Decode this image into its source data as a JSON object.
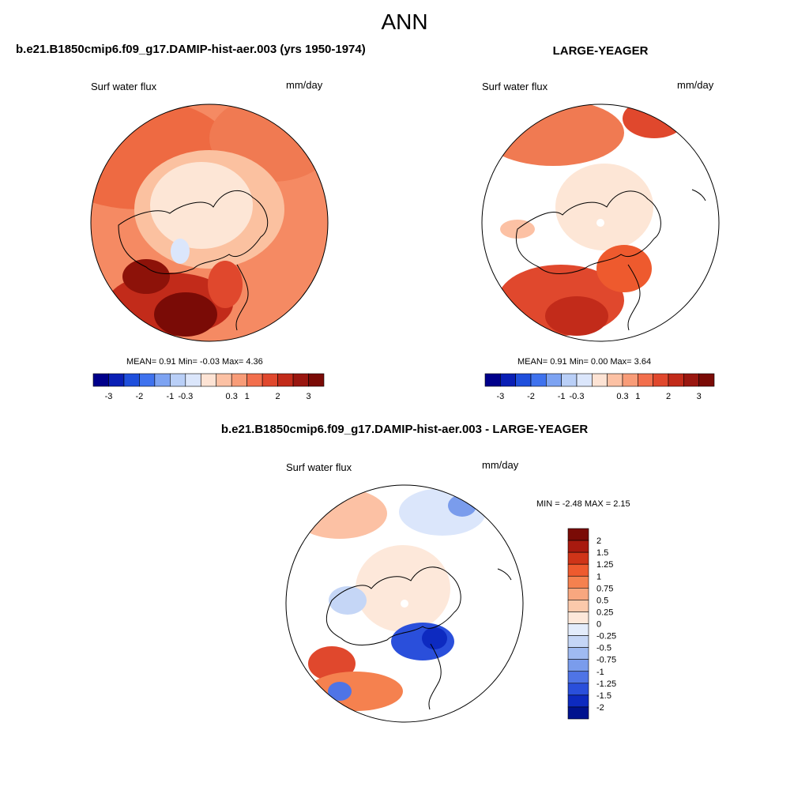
{
  "main_title": "ANN",
  "panels": {
    "left": {
      "title": "b.e21.B1850cmip6.f09_g17.DAMIP-hist-aer.003 (yrs 1950-1974)",
      "variable": "Surf water flux",
      "units": "mm/day",
      "stats": "MEAN=   0.91  Min=   -0.03  Max=   4.36"
    },
    "right": {
      "title": "LARGE-YEAGER",
      "variable": "Surf water flux",
      "units": "mm/day",
      "stats": "MEAN=   0.91  Min=   0.00  Max=   3.64"
    },
    "diff": {
      "title": "b.e21.B1850cmip6.f09_g17.DAMIP-hist-aer.003 - LARGE-YEAGER",
      "variable": "Surf water flux",
      "units": "mm/day",
      "stats": "MIN =  -2.48 MAX =   2.15"
    }
  },
  "chart_data": [
    {
      "type": "heatmap",
      "projection": "north-polar-stereographic",
      "title": "b.e21.B1850cmip6.f09_g17.DAMIP-hist-aer.003 (yrs 1950-1974)",
      "variable": "Surf water flux",
      "units": "mm/day",
      "mean": 0.91,
      "min": -0.03,
      "max": 4.36,
      "colorbar": {
        "orientation": "horizontal",
        "levels": [
          -3,
          -2,
          -1,
          -0.3,
          0.3,
          1,
          2,
          3
        ],
        "tick_labels": [
          "-3",
          "-2",
          "-1",
          "-0.3",
          "0.3",
          "1",
          "2",
          "3"
        ],
        "colors": [
          "#00008b",
          "#0a1fb5",
          "#1f4fdc",
          "#3f72ee",
          "#7da3f2",
          "#b9cff7",
          "#dbe6fb",
          "#fde3d4",
          "#fcc1a4",
          "#f89c78",
          "#f26f4d",
          "#e0482d",
          "#c22b1a",
          "#9a1710",
          "#7a0b06"
        ]
      }
    },
    {
      "type": "heatmap",
      "projection": "north-polar-stereographic",
      "title": "LARGE-YEAGER",
      "variable": "Surf water flux",
      "units": "mm/day",
      "mean": 0.91,
      "min": 0.0,
      "max": 3.64,
      "colorbar": {
        "orientation": "horizontal",
        "levels": [
          -3,
          -2,
          -1,
          -0.3,
          0.3,
          1,
          2,
          3
        ],
        "tick_labels": [
          "-3",
          "-2",
          "-1",
          "-0.3",
          "0.3",
          "1",
          "2",
          "3"
        ],
        "colors": [
          "#00008b",
          "#0a1fb5",
          "#1f4fdc",
          "#3f72ee",
          "#7da3f2",
          "#b9cff7",
          "#dbe6fb",
          "#fde3d4",
          "#fcc1a4",
          "#f89c78",
          "#f26f4d",
          "#e0482d",
          "#c22b1a",
          "#9a1710",
          "#7a0b06"
        ]
      }
    },
    {
      "type": "heatmap",
      "projection": "north-polar-stereographic",
      "title": "b.e21.B1850cmip6.f09_g17.DAMIP-hist-aer.003 - LARGE-YEAGER",
      "variable": "Surf water flux",
      "units": "mm/day",
      "min": -2.48,
      "max": 2.15,
      "colorbar": {
        "orientation": "vertical",
        "levels": [
          2,
          1.5,
          1.25,
          1,
          0.75,
          0.5,
          0.25,
          0,
          -0.25,
          -0.5,
          -0.75,
          -1,
          -1.25,
          -1.5,
          -2
        ],
        "tick_labels": [
          "2",
          "1.5",
          "1.25",
          "1",
          "0.75",
          "0.5",
          "0.25",
          "0",
          "-0.25",
          "-0.5",
          "-0.75",
          "-1",
          "-1.25",
          "-1.5",
          "-2"
        ],
        "colors": [
          "#7a0b06",
          "#a81a0f",
          "#cf3418",
          "#ee5a2e",
          "#f5814f",
          "#f8a77f",
          "#fbc9ab",
          "#fde8da",
          "#e3ecfb",
          "#c5d6f6",
          "#9fbaf1",
          "#7a9cec",
          "#4f74e6",
          "#2a4fdb",
          "#0d2ac0",
          "#00128e"
        ]
      }
    }
  ]
}
